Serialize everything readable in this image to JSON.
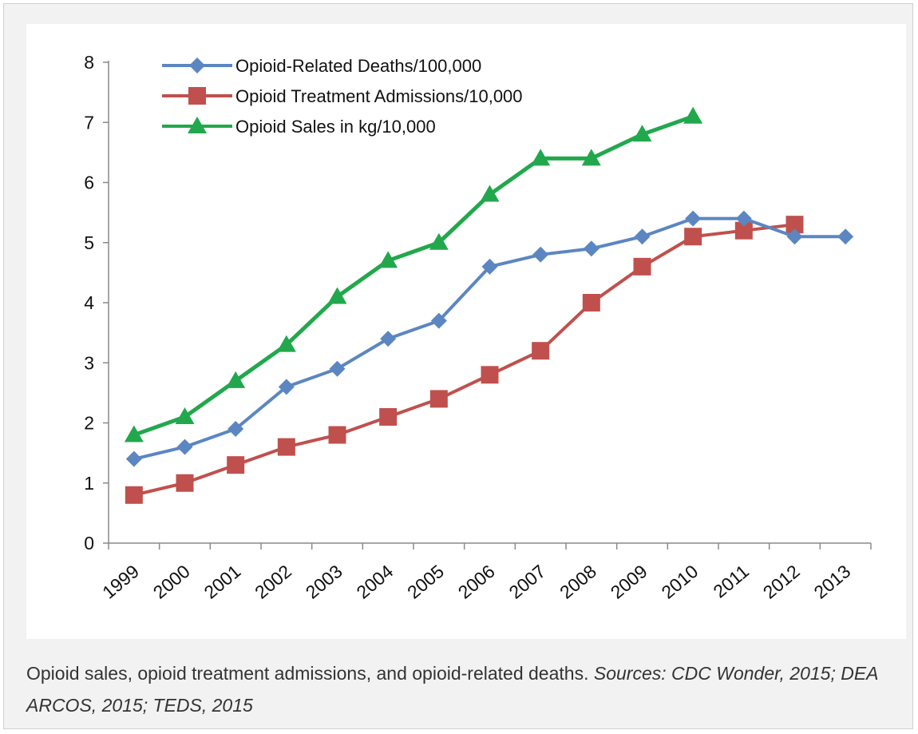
{
  "caption": {
    "text": "Opioid sales, opioid treatment admissions, and opioid-related deaths.",
    "sources": "Sources: CDC Wonder, 2015; DEA ARCOS, 2015; TEDS, 2015"
  },
  "chart_data": {
    "type": "line",
    "title": "",
    "xlabel": "",
    "ylabel": "",
    "categories": [
      "1999",
      "2000",
      "2001",
      "2002",
      "2003",
      "2004",
      "2005",
      "2006",
      "2007",
      "2008",
      "2009",
      "2010",
      "2011",
      "2012",
      "2013"
    ],
    "yticks": [
      "0",
      "1",
      "2",
      "3",
      "4",
      "5",
      "6",
      "7",
      "8"
    ],
    "ylim": [
      0,
      8
    ],
    "grid": false,
    "legend": "top-left",
    "series": [
      {
        "name": "Opioid-Related Deaths/100,000",
        "color": "#5b86c1",
        "marker": "diamond",
        "values": [
          1.4,
          1.6,
          1.9,
          2.6,
          2.9,
          3.4,
          3.7,
          4.6,
          4.8,
          4.9,
          5.1,
          5.4,
          5.4,
          5.1,
          5.1
        ]
      },
      {
        "name": "Opioid Treatment Admissions/10,000",
        "color": "#c0504d",
        "marker": "square",
        "values": [
          0.8,
          1.0,
          1.3,
          1.6,
          1.8,
          2.1,
          2.4,
          2.8,
          3.2,
          4.0,
          4.6,
          5.1,
          5.2,
          5.3,
          null
        ]
      },
      {
        "name": "Opioid Sales in kg/10,000",
        "color": "#22a84c",
        "marker": "triangle",
        "values": [
          1.8,
          2.1,
          2.7,
          3.3,
          4.1,
          4.7,
          5.0,
          5.8,
          6.4,
          6.4,
          6.8,
          7.1,
          null,
          null,
          null
        ]
      }
    ]
  }
}
